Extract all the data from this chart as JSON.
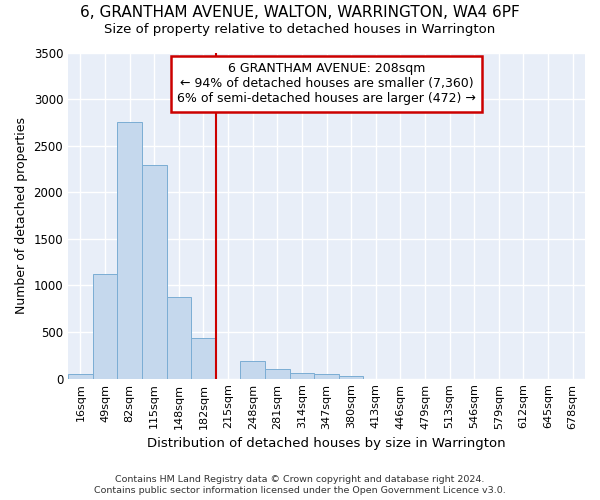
{
  "title1": "6, GRANTHAM AVENUE, WALTON, WARRINGTON, WA4 6PF",
  "title2": "Size of property relative to detached houses in Warrington",
  "xlabel": "Distribution of detached houses by size in Warrington",
  "ylabel": "Number of detached properties",
  "categories": [
    "16sqm",
    "49sqm",
    "82sqm",
    "115sqm",
    "148sqm",
    "182sqm",
    "215sqm",
    "248sqm",
    "281sqm",
    "314sqm",
    "347sqm",
    "380sqm",
    "413sqm",
    "446sqm",
    "479sqm",
    "513sqm",
    "546sqm",
    "579sqm",
    "612sqm",
    "645sqm",
    "678sqm"
  ],
  "values": [
    55,
    1120,
    2750,
    2290,
    875,
    435,
    0,
    185,
    105,
    60,
    50,
    30,
    0,
    0,
    0,
    0,
    0,
    0,
    0,
    0,
    0
  ],
  "bar_color": "#c5d8ed",
  "bar_edge_color": "#7badd4",
  "bg_color": "#e8eef8",
  "grid_color": "#ffffff",
  "vline_color": "#cc0000",
  "annotation_title": "6 GRANTHAM AVENUE: 208sqm",
  "annotation_line1": "← 94% of detached houses are smaller (7,360)",
  "annotation_line2": "6% of semi-detached houses are larger (472) →",
  "annotation_box_color": "#cc0000",
  "ylim": [
    0,
    3500
  ],
  "yticks": [
    0,
    500,
    1000,
    1500,
    2000,
    2500,
    3000,
    3500
  ],
  "footnote1": "Contains HM Land Registry data © Crown copyright and database right 2024.",
  "footnote2": "Contains public sector information licensed under the Open Government Licence v3.0.",
  "title1_fontsize": 11,
  "title2_fontsize": 9.5
}
